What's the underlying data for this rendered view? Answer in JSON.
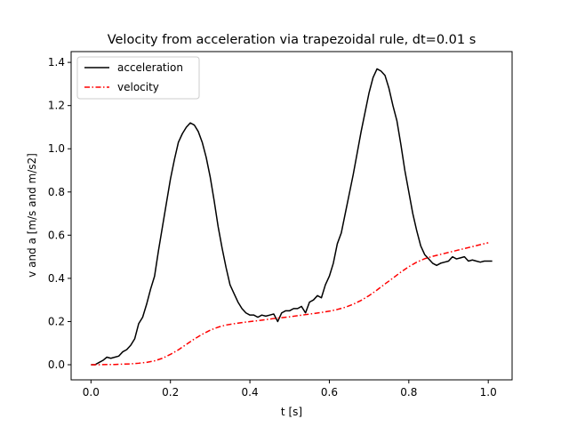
{
  "chart_data": {
    "type": "line",
    "title": "Velocity from acceleration via trapezoidal rule, dt=0.01 s",
    "xlabel": "t [s]",
    "ylabel": "v and a [m/s and m/s2]",
    "xlim": [
      -0.05,
      1.06
    ],
    "ylim": [
      -0.07,
      1.45
    ],
    "xticks": [
      0.0,
      0.2,
      0.4,
      0.6,
      0.8,
      1.0
    ],
    "xtick_labels": [
      "0.0",
      "0.2",
      "0.4",
      "0.6",
      "0.8",
      "1.0"
    ],
    "yticks": [
      0.0,
      0.2,
      0.4,
      0.6,
      0.8,
      1.0,
      1.2,
      1.4
    ],
    "ytick_labels": [
      "0.0",
      "0.2",
      "0.4",
      "0.6",
      "0.8",
      "1.0",
      "1.2",
      "1.4"
    ],
    "grid": false,
    "legend_position": "top-left",
    "series": [
      {
        "name": "acceleration",
        "color": "#000000",
        "linestyle": "solid",
        "x": [
          0.0,
          0.01,
          0.02,
          0.03,
          0.04,
          0.05,
          0.06,
          0.07,
          0.08,
          0.09,
          0.1,
          0.11,
          0.12,
          0.13,
          0.14,
          0.15,
          0.16,
          0.17,
          0.18,
          0.19,
          0.2,
          0.21,
          0.22,
          0.23,
          0.24,
          0.25,
          0.26,
          0.27,
          0.28,
          0.29,
          0.3,
          0.31,
          0.32,
          0.33,
          0.34,
          0.35,
          0.36,
          0.37,
          0.38,
          0.39,
          0.4,
          0.41,
          0.42,
          0.43,
          0.44,
          0.45,
          0.46,
          0.47,
          0.48,
          0.49,
          0.5,
          0.51,
          0.52,
          0.53,
          0.54,
          0.55,
          0.56,
          0.57,
          0.58,
          0.59,
          0.6,
          0.61,
          0.62,
          0.63,
          0.64,
          0.65,
          0.66,
          0.67,
          0.68,
          0.69,
          0.7,
          0.71,
          0.72,
          0.73,
          0.74,
          0.75,
          0.76,
          0.77,
          0.78,
          0.79,
          0.8,
          0.81,
          0.82,
          0.83,
          0.84,
          0.85,
          0.86,
          0.87,
          0.88,
          0.89,
          0.9,
          0.91,
          0.92,
          0.93,
          0.94,
          0.95,
          0.96,
          0.97,
          0.98,
          0.99,
          1.0,
          1.01
        ],
        "y": [
          0.0,
          0.0,
          0.01,
          0.02,
          0.035,
          0.03,
          0.035,
          0.04,
          0.06,
          0.07,
          0.09,
          0.12,
          0.19,
          0.22,
          0.28,
          0.35,
          0.41,
          0.53,
          0.64,
          0.75,
          0.86,
          0.95,
          1.03,
          1.07,
          1.1,
          1.12,
          1.11,
          1.08,
          1.03,
          0.96,
          0.87,
          0.76,
          0.64,
          0.54,
          0.45,
          0.37,
          0.33,
          0.29,
          0.26,
          0.24,
          0.23,
          0.23,
          0.22,
          0.23,
          0.225,
          0.23,
          0.235,
          0.2,
          0.24,
          0.25,
          0.25,
          0.26,
          0.26,
          0.27,
          0.24,
          0.29,
          0.3,
          0.32,
          0.31,
          0.37,
          0.41,
          0.47,
          0.56,
          0.61,
          0.7,
          0.79,
          0.88,
          0.98,
          1.08,
          1.17,
          1.26,
          1.33,
          1.37,
          1.36,
          1.34,
          1.28,
          1.2,
          1.13,
          1.02,
          0.9,
          0.8,
          0.7,
          0.62,
          0.55,
          0.51,
          0.49,
          0.47,
          0.46,
          0.47,
          0.475,
          0.48,
          0.5,
          0.49,
          0.495,
          0.5,
          0.48,
          0.485,
          0.48,
          0.475,
          0.48,
          0.48,
          0.48
        ]
      },
      {
        "name": "velocity",
        "color": "#ff0000",
        "linestyle": "dashdot",
        "x": [
          0.0,
          0.02,
          0.04,
          0.06,
          0.08,
          0.1,
          0.12,
          0.14,
          0.16,
          0.18,
          0.2,
          0.22,
          0.24,
          0.26,
          0.28,
          0.3,
          0.32,
          0.34,
          0.36,
          0.38,
          0.4,
          0.42,
          0.44,
          0.46,
          0.48,
          0.5,
          0.52,
          0.54,
          0.56,
          0.58,
          0.6,
          0.62,
          0.64,
          0.66,
          0.68,
          0.7,
          0.72,
          0.74,
          0.76,
          0.78,
          0.8,
          0.82,
          0.84,
          0.86,
          0.88,
          0.9,
          0.92,
          0.94,
          0.96,
          0.98,
          1.0
        ],
        "y": [
          0.0,
          0.0,
          0.001,
          0.001,
          0.003,
          0.004,
          0.007,
          0.011,
          0.018,
          0.03,
          0.048,
          0.069,
          0.094,
          0.119,
          0.141,
          0.16,
          0.174,
          0.184,
          0.19,
          0.195,
          0.2,
          0.204,
          0.209,
          0.214,
          0.218,
          0.222,
          0.227,
          0.232,
          0.237,
          0.242,
          0.248,
          0.256,
          0.266,
          0.28,
          0.298,
          0.32,
          0.346,
          0.374,
          0.401,
          0.429,
          0.454,
          0.475,
          0.491,
          0.502,
          0.511,
          0.52,
          0.529,
          0.538,
          0.547,
          0.556,
          0.565
        ]
      }
    ]
  }
}
